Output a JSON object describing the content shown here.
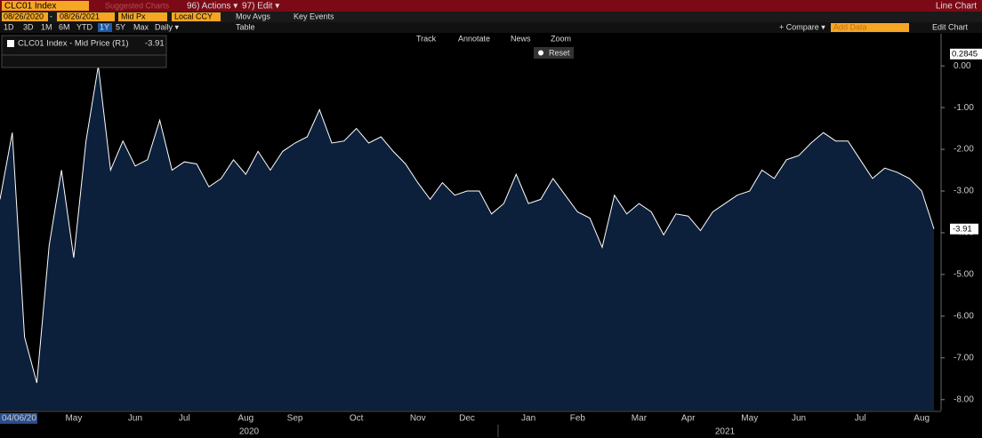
{
  "toolbar": {
    "ticker": "CLC01 Index",
    "suggested": "Suggested Charts",
    "actions": "96) Actions ▾",
    "edit": "97) Edit ▾",
    "chart_kind": "Line Chart",
    "start_date": "08/26/2020",
    "date_sep": "-",
    "end_date": "08/26/2021",
    "price_field": "Mid Px",
    "currency": "Local CCY",
    "mov_avgs": "Mov Avgs",
    "key_events": "Key Events",
    "periods": [
      "1D",
      "3D",
      "1M",
      "6M",
      "YTD",
      "1Y",
      "5Y",
      "Max"
    ],
    "frequency": "Daily ▾",
    "table": "Table",
    "compare": "+ Compare ▾",
    "add_data": "Add Data",
    "edit_chart": "Edit Chart"
  },
  "chart_tools": [
    "Track",
    "Annotate",
    "News",
    "Zoom"
  ],
  "reset": "Reset",
  "chart_data": {
    "type": "line",
    "start_label": "04/06/20",
    "year_labels": [
      "2020",
      "2021"
    ],
    "categories": [
      null,
      null,
      "Apr",
      null,
      null,
      null,
      "May",
      null,
      null,
      null,
      null,
      "Jun",
      null,
      null,
      null,
      "Jul",
      null,
      null,
      null,
      null,
      "Aug",
      null,
      null,
      null,
      "Sep",
      null,
      null,
      null,
      null,
      "Oct",
      null,
      null,
      null,
      null,
      "Nov",
      null,
      null,
      null,
      "Dec",
      null,
      null,
      null,
      null,
      "Jan",
      null,
      null,
      null,
      "Feb",
      null,
      null,
      null,
      null,
      "Mar",
      null,
      null,
      null,
      "Apr",
      null,
      null,
      null,
      null,
      "May",
      null,
      null,
      null,
      "Jun",
      null,
      null,
      null,
      null,
      "Jul",
      null,
      null,
      null,
      null,
      "Aug",
      null
    ],
    "series": [
      {
        "name": "CLC01 Index - Mid Price (R1)",
        "color": "#ffffff",
        "fill": "#0c1f3b",
        "values": [
          -3.2,
          -1.6,
          -6.5,
          -7.6,
          -4.3,
          -2.5,
          -4.6,
          -1.8,
          0.0,
          -2.5,
          -1.8,
          -2.4,
          -2.25,
          -1.3,
          -2.5,
          -2.3,
          -2.35,
          -2.9,
          -2.7,
          -2.25,
          -2.6,
          -2.05,
          -2.5,
          -2.05,
          -1.85,
          -1.7,
          -1.05,
          -1.85,
          -1.8,
          -1.5,
          -1.85,
          -1.7,
          -2.05,
          -2.35,
          -2.8,
          -3.2,
          -2.8,
          -3.1,
          -3.0,
          -3.0,
          -3.55,
          -3.3,
          -2.6,
          -3.3,
          -3.2,
          -2.7,
          -3.1,
          -3.5,
          -3.65,
          -4.35,
          -3.1,
          -3.55,
          -3.3,
          -3.5,
          -4.05,
          -3.55,
          -3.6,
          -3.95,
          -3.5,
          -3.3,
          -3.1,
          -3.0,
          -2.5,
          -2.7,
          -2.25,
          -2.15,
          -1.85,
          -1.6,
          -1.8,
          -1.8,
          -2.25,
          -2.7,
          -2.45,
          -2.55,
          -2.7,
          -3.0,
          -3.91
        ]
      }
    ],
    "marker_value": 0.2845,
    "ylim": [
      -8.26,
      0.77
    ],
    "yticks": [
      {
        "value": 0,
        "label": "0.00"
      },
      {
        "value": -1,
        "label": "-1.00"
      },
      {
        "value": -2,
        "label": "-2.00"
      },
      {
        "value": -3,
        "label": "-3.00"
      },
      {
        "value": -4,
        "label": "-4.00"
      },
      {
        "value": -5,
        "label": "-5.00"
      },
      {
        "value": -6,
        "label": "-6.00"
      },
      {
        "value": -7,
        "label": "-7.00"
      },
      {
        "value": -8,
        "label": "-8.00"
      }
    ],
    "grid": false
  }
}
